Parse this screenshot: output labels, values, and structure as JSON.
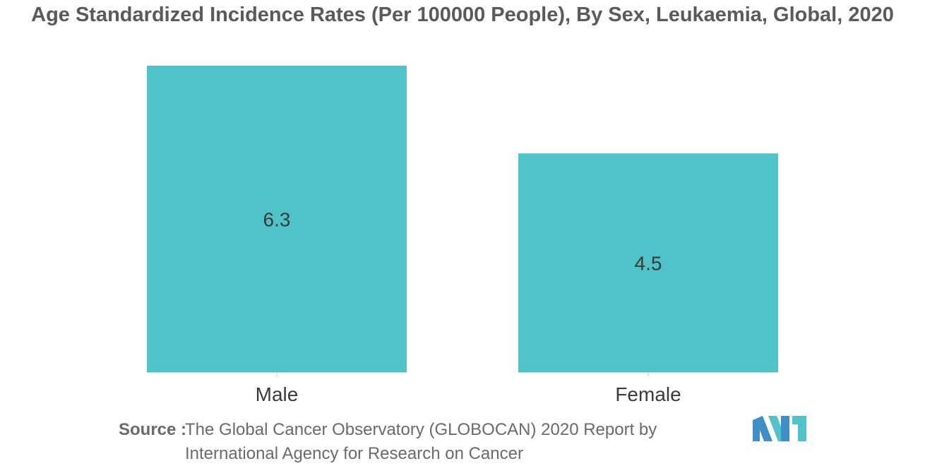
{
  "chart_data": {
    "type": "bar",
    "title": "Age Standardized Incidence Rates (Per 100000 People), By Sex, Leukaemia, Global, 2020",
    "categories": [
      "Male",
      "Female"
    ],
    "values": [
      6.3,
      4.5
    ],
    "value_labels": [
      "6.3",
      "4.5"
    ],
    "xlabel": "",
    "ylabel": "",
    "ylim": [
      0,
      6.3
    ],
    "grid": false,
    "legend": "none"
  },
  "colors": {
    "bar": "#50c3c9",
    "title": "#5a5a5a",
    "axis_text": "#3a3a3a",
    "source_text": "#6a6a6a",
    "logo_primary": "#3f8fc6",
    "logo_secondary": "#50c3c9"
  },
  "source": {
    "label": "Source :",
    "text": "The Global Cancer Observatory (GLOBOCAN) 2020 Report by International Agency for Research on Cancer"
  },
  "logo": {
    "icon": "mordor-intelligence-logo-icon"
  }
}
